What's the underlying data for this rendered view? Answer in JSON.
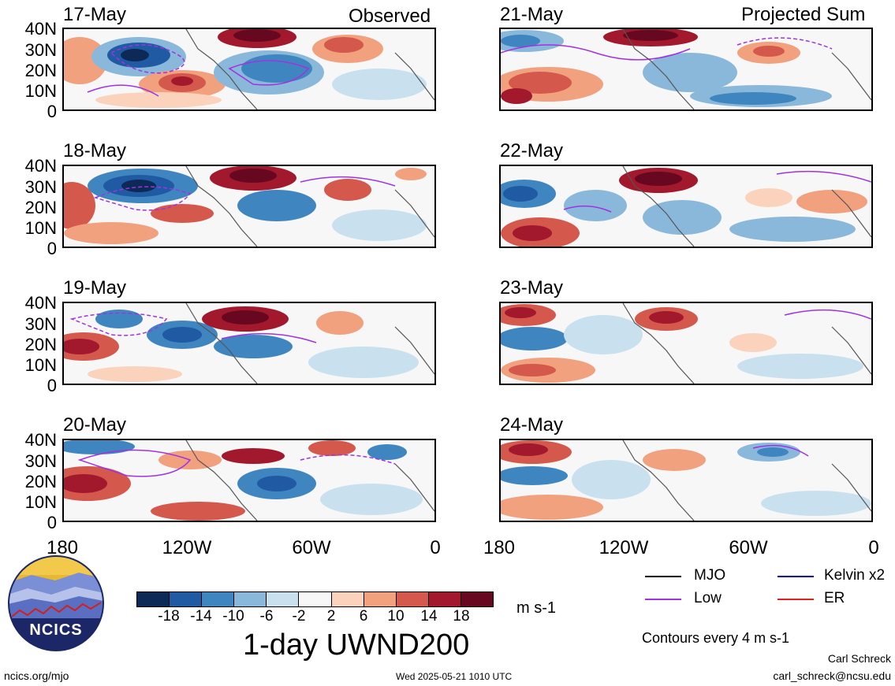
{
  "panels_left": [
    {
      "date": "17-May",
      "header": "Observed"
    },
    {
      "date": "18-May"
    },
    {
      "date": "19-May"
    },
    {
      "date": "20-May"
    }
  ],
  "panels_right": [
    {
      "date": "21-May",
      "header": "Projected Sum"
    },
    {
      "date": "22-May"
    },
    {
      "date": "23-May"
    },
    {
      "date": "24-May"
    }
  ],
  "lat_labels": [
    "40N",
    "30N",
    "20N",
    "10N",
    "0"
  ],
  "lon_labels": [
    "180",
    "120W",
    "60W",
    "0"
  ],
  "colorbar": {
    "ticks": [
      "-18",
      "-14",
      "-10",
      "-6",
      "-2",
      "2",
      "6",
      "10",
      "14",
      "18"
    ],
    "colors": [
      "#0d2a57",
      "#1f5aa3",
      "#3f86c0",
      "#8ab8da",
      "#c9e0ef",
      "#f7f7f7",
      "#fbd3bd",
      "#f2a17e",
      "#d4584b",
      "#a2182c",
      "#680820"
    ],
    "unit": "m s-1"
  },
  "main_title": "1-day UWND200",
  "legend": [
    {
      "label": "MJO",
      "color": "#000000"
    },
    {
      "label": "Kelvin x2",
      "color": "#0000cc"
    },
    {
      "label": "Low",
      "color": "#a033e0"
    },
    {
      "label": "ER",
      "color": "#e02020"
    }
  ],
  "contour_note": "Contours every 4 m s-1",
  "logo_text": "NCICS",
  "footer": {
    "url": "ncics.org/mjo",
    "timestamp": "Wed 2025-05-21 1010 UTC",
    "author": "Carl Schreck",
    "email": "carl_schreck@ncsu.edu"
  }
}
